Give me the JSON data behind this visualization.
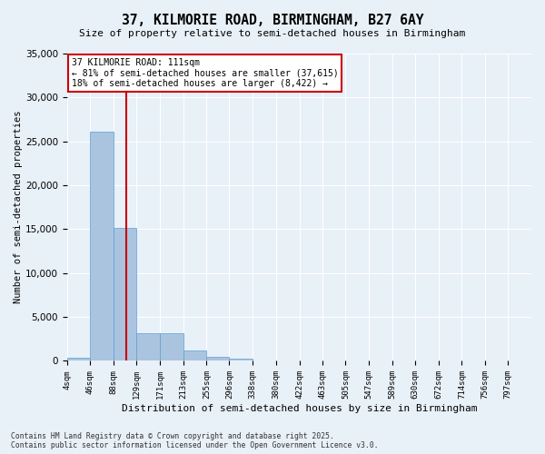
{
  "title_line1": "37, KILMORIE ROAD, BIRMINGHAM, B27 6AY",
  "title_line2": "Size of property relative to semi-detached houses in Birmingham",
  "xlabel": "Distribution of semi-detached houses by size in Birmingham",
  "ylabel": "Number of semi-detached properties",
  "property_size": 111,
  "annotation_title": "37 KILMORIE ROAD: 111sqm",
  "annotation_line2": "← 81% of semi-detached houses are smaller (37,615)",
  "annotation_line3": "18% of semi-detached houses are larger (8,422) →",
  "footer_line1": "Contains HM Land Registry data © Crown copyright and database right 2025.",
  "footer_line2": "Contains public sector information licensed under the Open Government Licence v3.0.",
  "bar_color": "#aac4e0",
  "bar_edge_color": "#5a9fd4",
  "vline_color": "#cc0000",
  "annotation_box_color": "#cc0000",
  "background_color": "#e8f0f8",
  "grid_color": "white",
  "ylim": [
    0,
    35000
  ],
  "yticks": [
    0,
    5000,
    10000,
    15000,
    20000,
    25000,
    30000,
    35000
  ],
  "bin_labels": [
    "4sqm",
    "46sqm",
    "88sqm",
    "129sqm",
    "171sqm",
    "213sqm",
    "255sqm",
    "296sqm",
    "338sqm",
    "380sqm",
    "422sqm",
    "463sqm",
    "505sqm",
    "547sqm",
    "589sqm",
    "630sqm",
    "672sqm",
    "714sqm",
    "756sqm",
    "797sqm"
  ],
  "bar_values": [
    350,
    26100,
    15100,
    3200,
    3150,
    1200,
    500,
    300,
    0,
    0,
    0,
    0,
    0,
    0,
    0,
    0,
    0,
    0,
    0,
    0
  ],
  "bin_edges": [
    4,
    46,
    88,
    129,
    171,
    213,
    255,
    296,
    338,
    380,
    422,
    463,
    505,
    547,
    589,
    630,
    672,
    714,
    756,
    797,
    839
  ]
}
